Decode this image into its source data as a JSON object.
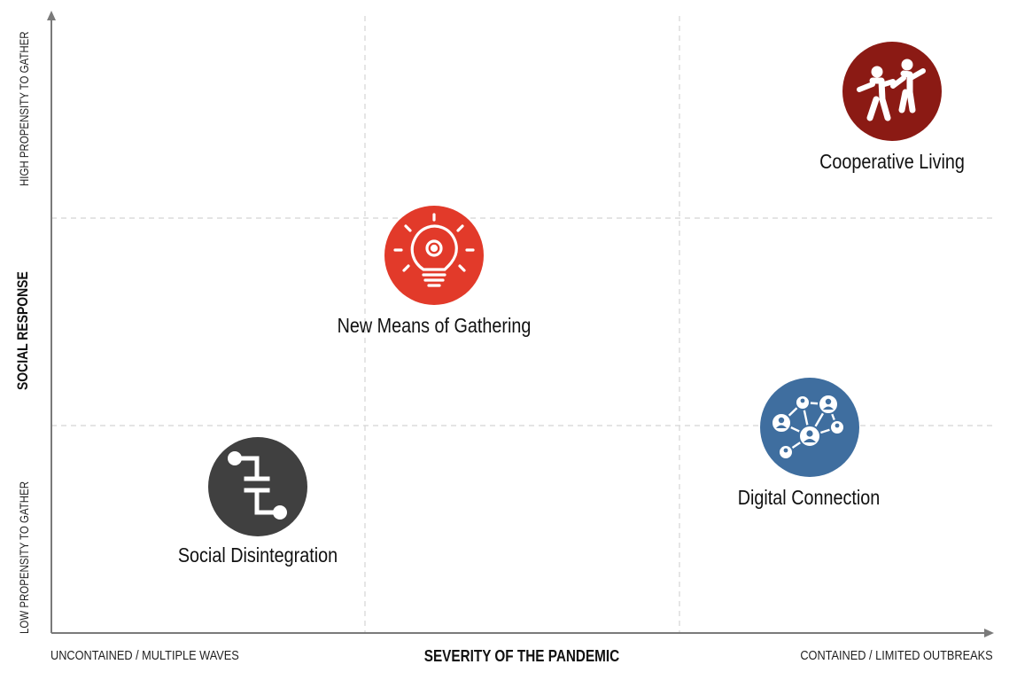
{
  "axes": {
    "y_title": "SOCIAL RESPONSE",
    "y_high": "HIGH PROPENSITY TO GATHER",
    "y_low": "LOW PROPENSITY TO GATHER",
    "x_title": "SEVERITY OF THE PANDEMIC",
    "x_left": "UNCONTAINED / MULTIPLE WAVES",
    "x_right": "CONTAINED / LIMITED OUTBREAKS"
  },
  "scenarios": [
    {
      "label": "Cooperative Living",
      "icon": "dancing-people-icon",
      "color": "#8b1a14"
    },
    {
      "label": "New Means of Gathering",
      "icon": "lightbulb-gear-icon",
      "color": "#e23a2a"
    },
    {
      "label": "Digital Connection",
      "icon": "network-people-icon",
      "color": "#3f6e9f"
    },
    {
      "label": "Social Disintegration",
      "icon": "broken-link-icon",
      "color": "#404040"
    }
  ]
}
